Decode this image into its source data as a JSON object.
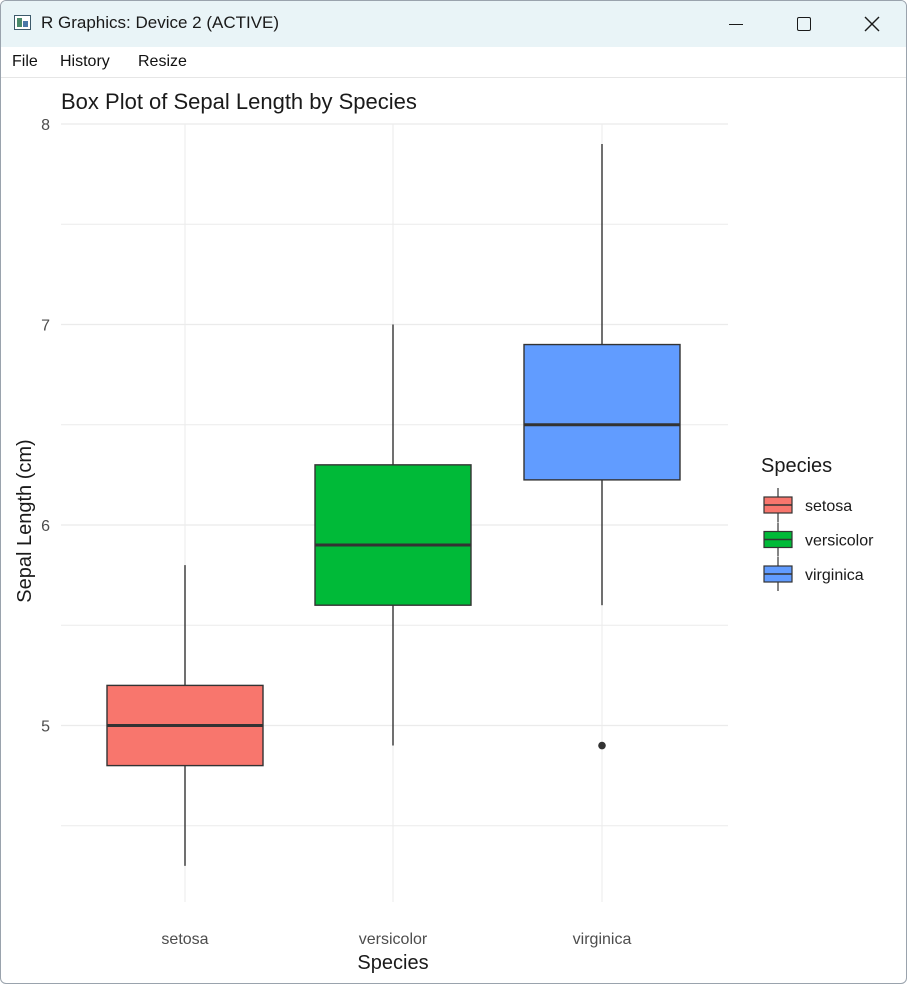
{
  "window": {
    "title": "R Graphics: Device 2 (ACTIVE)"
  },
  "menu": {
    "file": "File",
    "history": "History",
    "resize": "Resize"
  },
  "colors": {
    "setosa": "#F8766D",
    "versicolor": "#00BA38",
    "virginica": "#619CFF",
    "grid": "#ebebeb",
    "box_line": "#333333",
    "titlebar": "#e9f4f7"
  },
  "chart_data": {
    "type": "box",
    "title": "Box Plot of Sepal Length by Species",
    "xlabel": "Species",
    "ylabel": "Sepal Length (cm)",
    "categories": [
      "setosa",
      "versicolor",
      "virginica"
    ],
    "y_ticks": [
      5,
      6,
      7,
      8
    ],
    "y_tick_labels": [
      "5",
      "6",
      "7",
      "8"
    ],
    "ylim": [
      4.2,
      8.1
    ],
    "grid": true,
    "boxes": [
      {
        "category": "setosa",
        "min": 4.3,
        "q1": 4.8,
        "median": 5.0,
        "q3": 5.2,
        "max": 5.8,
        "outliers": []
      },
      {
        "category": "versicolor",
        "min": 4.9,
        "q1": 5.6,
        "median": 5.9,
        "q3": 6.3,
        "max": 7.0,
        "outliers": []
      },
      {
        "category": "virginica",
        "min": 5.6,
        "q1": 6.225,
        "median": 6.5,
        "q3": 6.9,
        "max": 7.9,
        "outliers": [
          4.9
        ]
      }
    ],
    "legend": {
      "title": "Species",
      "position": "right",
      "entries": [
        "setosa",
        "versicolor",
        "virginica"
      ]
    }
  }
}
